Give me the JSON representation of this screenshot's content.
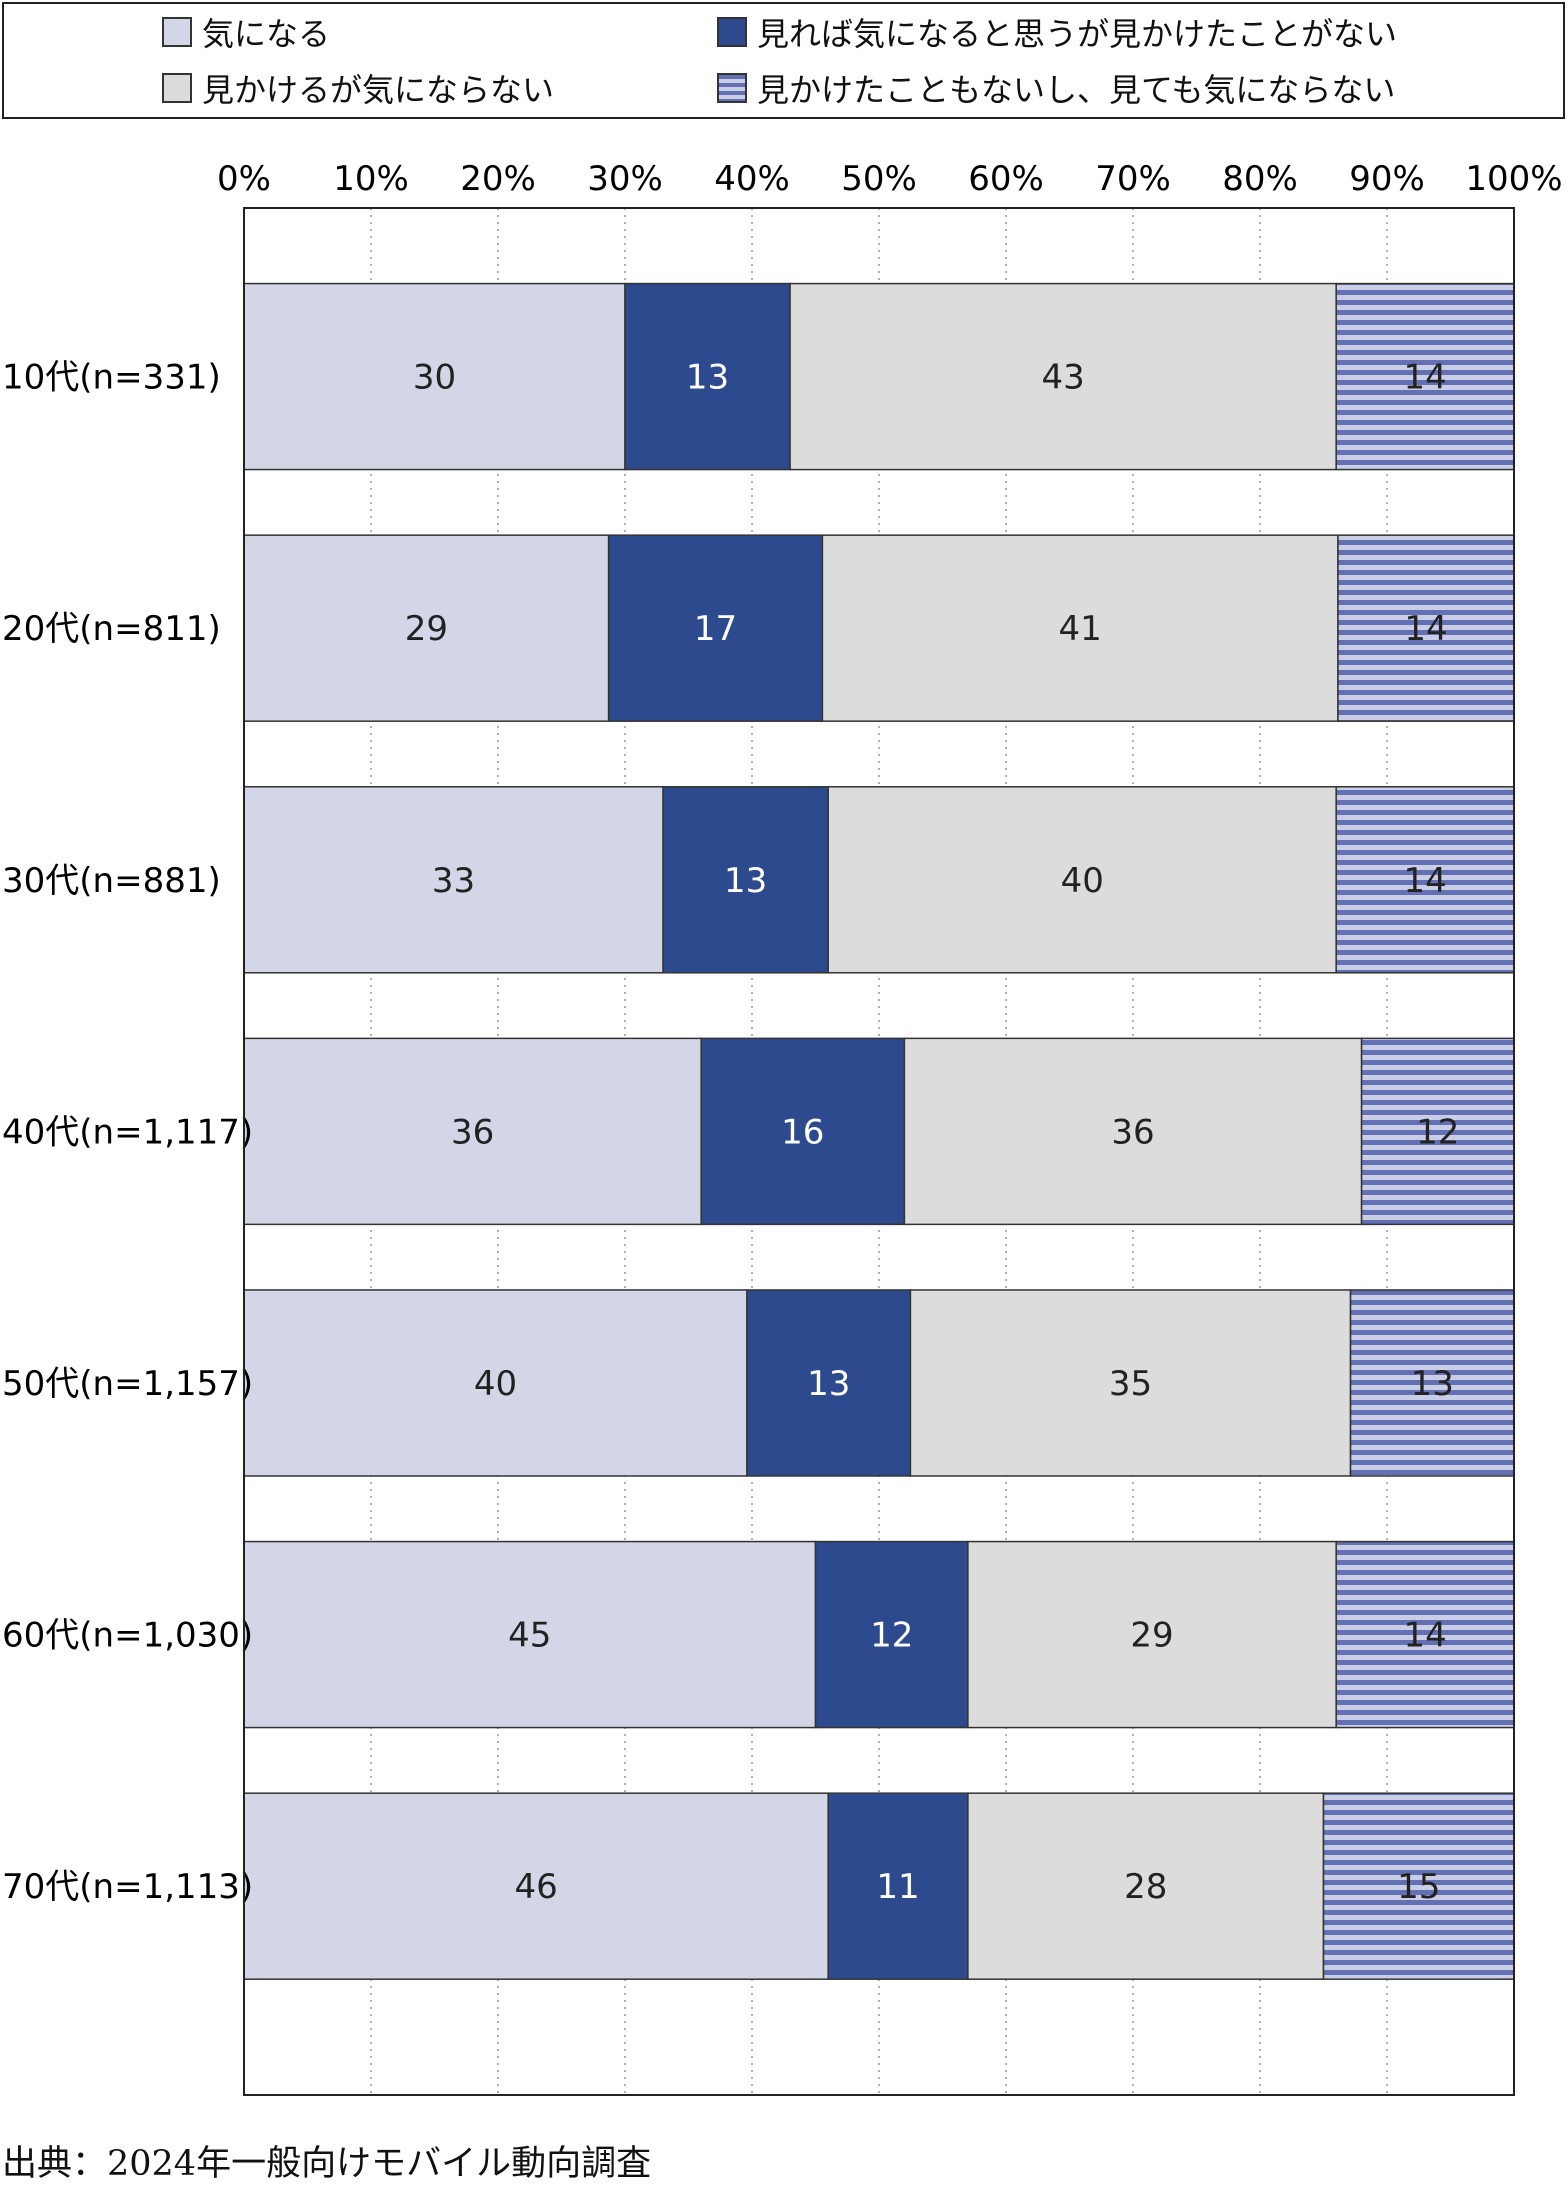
{
  "legend": {
    "items": [
      {
        "label": "気になる",
        "color": "#d3d6e6",
        "pattern": "solid"
      },
      {
        "label": "見れば気になると思うが見かけたことがない",
        "color": "#2e4a8e",
        "pattern": "solid"
      },
      {
        "label": "見かけるが気にならない",
        "color": "#dcdcdc",
        "pattern": "solid"
      },
      {
        "label": "見かけたこともないし、見ても気にならない",
        "color": "#6470b4",
        "pattern": "horizontal-stripes"
      }
    ]
  },
  "chart_data": {
    "type": "bar",
    "orientation": "horizontal",
    "stacked": true,
    "categories": [
      "10代(n=331)",
      "20代(n=811)",
      "30代(n=881)",
      "40代(n=1,117)",
      "50代(n=1,157)",
      "60代(n=1,030)",
      "70代(n=1,113)"
    ],
    "series": [
      {
        "name": "気になる",
        "values": [
          30,
          29,
          33,
          36,
          40,
          45,
          46
        ]
      },
      {
        "name": "見れば気になると思うが見かけたことがない",
        "values": [
          13,
          17,
          13,
          16,
          13,
          12,
          11
        ]
      },
      {
        "name": "見かけるが気にならない",
        "values": [
          43,
          41,
          40,
          36,
          35,
          29,
          28
        ]
      },
      {
        "name": "見かけたこともないし、見ても気にならない",
        "values": [
          14,
          14,
          14,
          12,
          13,
          14,
          15
        ]
      }
    ],
    "xlim": [
      0,
      100
    ],
    "x_ticks": [
      "0%",
      "10%",
      "20%",
      "30%",
      "40%",
      "50%",
      "60%",
      "70%",
      "80%",
      "90%",
      "100%"
    ],
    "grid": "vertical dotted",
    "legend_position": "top"
  },
  "source": "出典：2024年一般向けモバイル動向調査"
}
